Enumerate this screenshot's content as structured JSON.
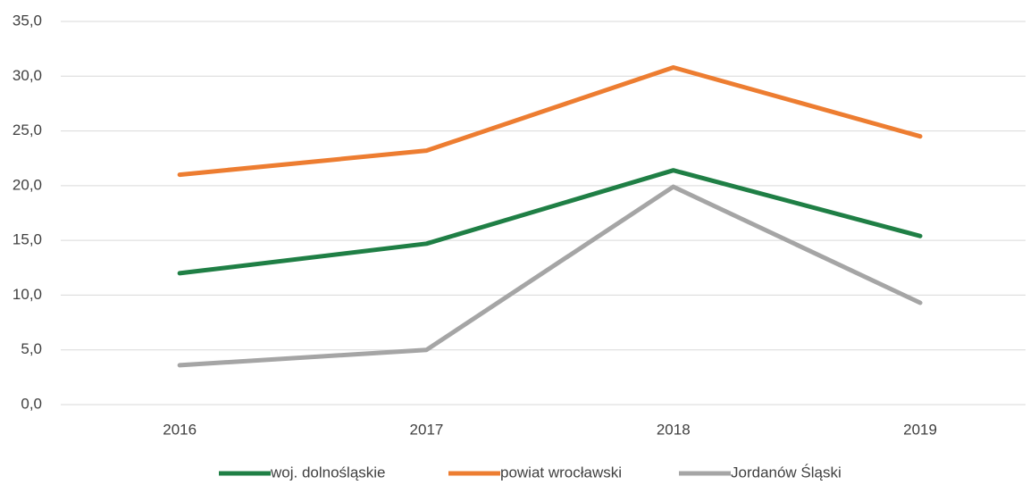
{
  "chart_data": {
    "type": "line",
    "categories": [
      "2016",
      "2017",
      "2018",
      "2019"
    ],
    "series": [
      {
        "name": "woj. dolnośląskie",
        "color": "#1f7f45",
        "values": [
          12.0,
          14.7,
          21.4,
          15.4
        ]
      },
      {
        "name": "powiat wrocławski",
        "color": "#ed7d31",
        "values": [
          21.0,
          23.2,
          30.8,
          24.5
        ]
      },
      {
        "name": "Jordanów Śląski",
        "color": "#a5a5a5",
        "values": [
          3.6,
          5.0,
          19.9,
          9.3
        ]
      }
    ],
    "ylim": [
      0,
      35
    ],
    "yticks": [
      {
        "value": 0,
        "label": "0,0"
      },
      {
        "value": 5,
        "label": "5,0"
      },
      {
        "value": 10,
        "label": "10,0"
      },
      {
        "value": 15,
        "label": "15,0"
      },
      {
        "value": 20,
        "label": "20,0"
      },
      {
        "value": 25,
        "label": "25,0"
      },
      {
        "value": 30,
        "label": "30,0"
      },
      {
        "value": 35,
        "label": "35,0"
      }
    ],
    "grid": true,
    "legend": "bottom"
  }
}
